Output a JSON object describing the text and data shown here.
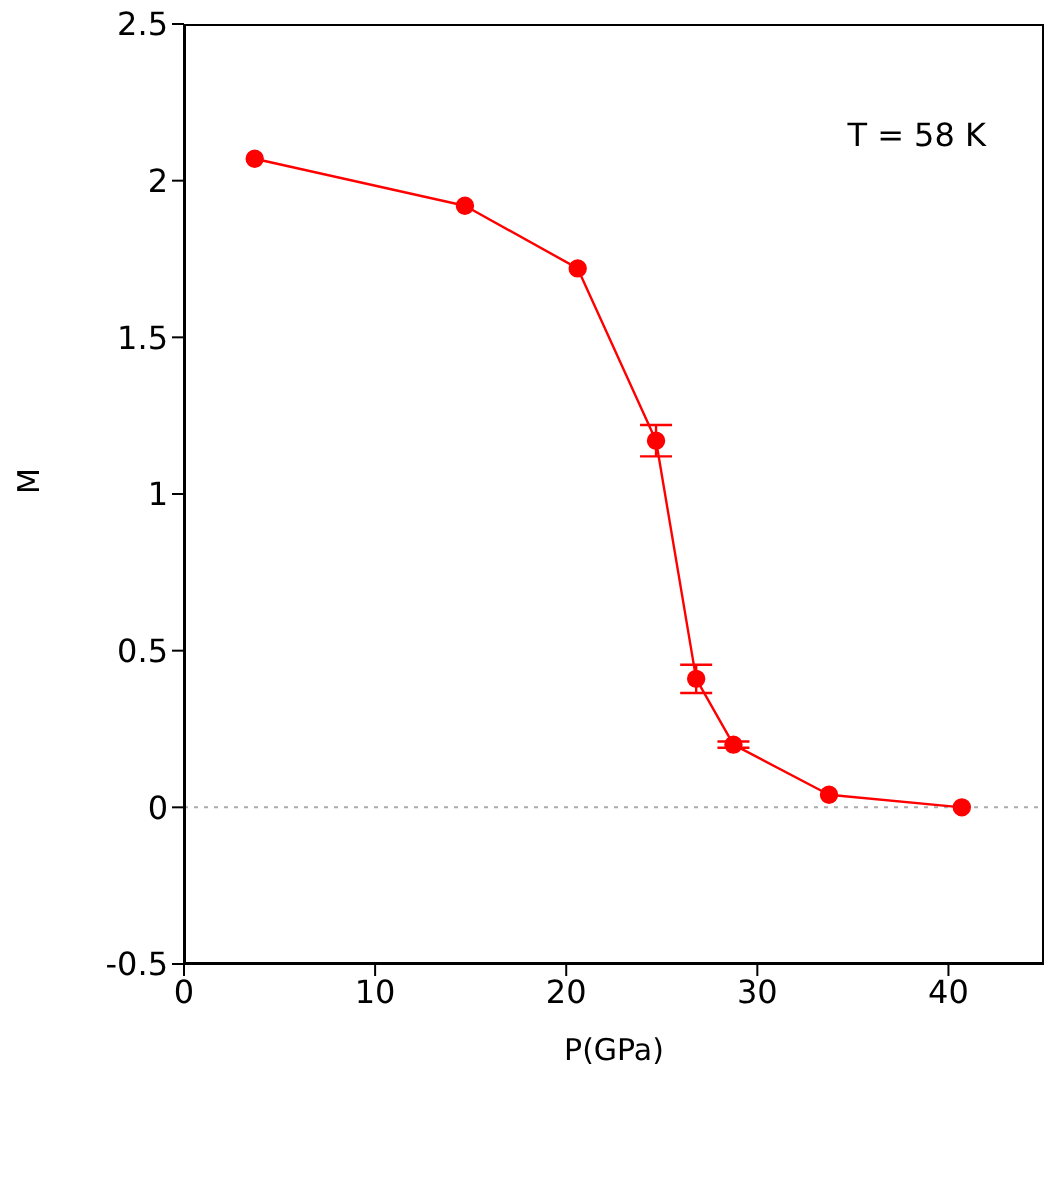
{
  "chart_data": {
    "type": "line",
    "xlabel": "P(GPa)",
    "ylabel": "M",
    "x": [
      3.7,
      14.7,
      20.6,
      24.7,
      26.8,
      28.75,
      33.75,
      40.7
    ],
    "series": [
      {
        "color": "#ff0000",
        "values": [
          2.07,
          1.92,
          1.72,
          1.17,
          0.41,
          0.2,
          0.04,
          0.0
        ],
        "errors": [
          null,
          null,
          null,
          0.05,
          0.045,
          0.01,
          null,
          null
        ]
      }
    ],
    "xlim": [
      0,
      45
    ],
    "xticks": [
      0,
      10,
      20,
      30,
      40
    ],
    "ylim": [
      -0.5,
      2.5
    ],
    "yticks": [
      -0.5,
      0,
      0.5,
      1,
      1.5,
      2,
      2.5
    ],
    "marker": "circle",
    "line_style": "solid",
    "grid": false,
    "legend": false,
    "ref_lines": [
      {
        "axis": "y",
        "value": 0,
        "color": "#aaaaaa",
        "line_style": "dotted"
      }
    ],
    "annotations": [
      "T = 58 K"
    ]
  }
}
